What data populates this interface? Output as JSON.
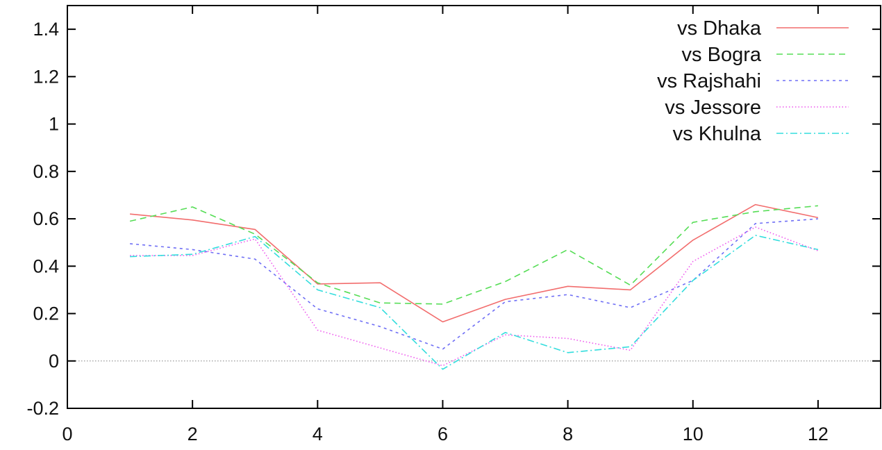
{
  "chart_data": {
    "type": "line",
    "title": "",
    "xlabel": "",
    "ylabel": "",
    "xlim": [
      0,
      13
    ],
    "ylim": [
      -0.2,
      1.5
    ],
    "x_ticks": [
      0,
      2,
      4,
      6,
      8,
      10,
      12
    ],
    "x_tick_labels": [
      "0",
      "2",
      "4",
      "6",
      "8",
      "10",
      "12"
    ],
    "y_ticks": [
      -0.2,
      0,
      0.2,
      0.4,
      0.6,
      0.8,
      1,
      1.2,
      1.4
    ],
    "y_tick_labels": [
      "-0.2",
      "0",
      "0.2",
      "0.4",
      "0.6",
      "0.8",
      "1",
      "1.2",
      "1.4"
    ],
    "grid": false,
    "zero_line": true,
    "legend_position": "top-right",
    "x": [
      1,
      2,
      3,
      4,
      5,
      6,
      7,
      8,
      9,
      10,
      11,
      12
    ],
    "series": [
      {
        "name": "vs Dhaka",
        "color": "#f26d6d",
        "dash": "solid",
        "values": [
          0.62,
          0.595,
          0.555,
          0.325,
          0.33,
          0.165,
          0.26,
          0.315,
          0.3,
          0.51,
          0.66,
          0.605
        ]
      },
      {
        "name": "vs Bogra",
        "color": "#55dd55",
        "dash": "dashed",
        "values": [
          0.59,
          0.65,
          0.535,
          0.33,
          0.245,
          0.24,
          0.335,
          0.47,
          0.32,
          0.585,
          0.63,
          0.655
        ]
      },
      {
        "name": "vs Rajshahi",
        "color": "#6f6ff5",
        "dash": "short-dashed",
        "values": [
          0.495,
          0.47,
          0.43,
          0.22,
          0.145,
          0.05,
          0.25,
          0.28,
          0.225,
          0.34,
          0.58,
          0.6
        ]
      },
      {
        "name": "vs Jessore",
        "color": "#ee55ee",
        "dash": "dotted",
        "values": [
          0.445,
          0.445,
          0.515,
          0.13,
          0.055,
          -0.02,
          0.11,
          0.095,
          0.045,
          0.42,
          0.565,
          0.465
        ]
      },
      {
        "name": "vs Khulna",
        "color": "#33dddd",
        "dash": "dash-dot",
        "values": [
          0.44,
          0.45,
          0.525,
          0.3,
          0.225,
          -0.035,
          0.12,
          0.035,
          0.06,
          0.34,
          0.53,
          0.47
        ]
      }
    ]
  }
}
